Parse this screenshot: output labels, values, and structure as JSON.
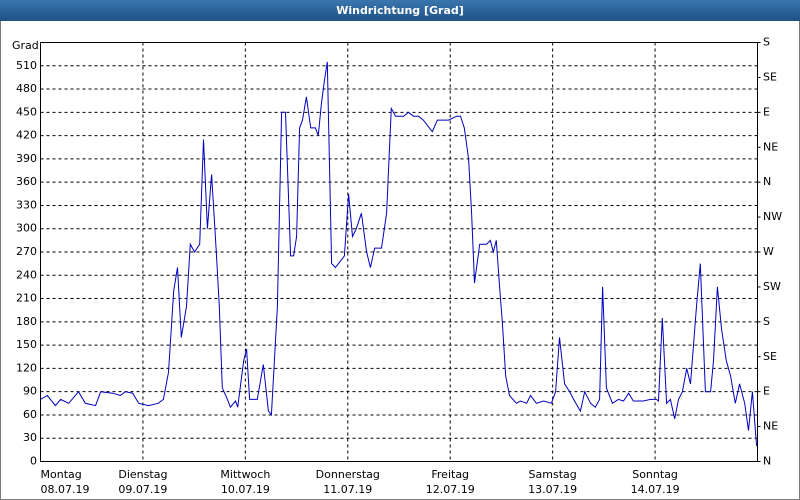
{
  "chart_data": {
    "type": "line",
    "title": "Windrichtung [Grad]",
    "y_label": "Grad",
    "color": "#0000c0",
    "xlim": [
      0,
      168
    ],
    "xticks": [
      {
        "value": 0,
        "label": "Montag",
        "date": "08.07.19"
      },
      {
        "value": 24,
        "label": "Dienstag",
        "date": "09.07.19"
      },
      {
        "value": 48,
        "label": "Mittwoch",
        "date": "10.07.19"
      },
      {
        "value": 72,
        "label": "Donnerstag",
        "date": "11.07.19"
      },
      {
        "value": 96,
        "label": "Freitag",
        "date": "12.07.19"
      },
      {
        "value": 120,
        "label": "Samstag",
        "date": "13.07.19"
      },
      {
        "value": 144,
        "label": "Sonntag",
        "date": "14.07.19"
      }
    ],
    "ylim": [
      0,
      540
    ],
    "yticks": [
      0,
      30,
      60,
      90,
      120,
      150,
      180,
      210,
      240,
      270,
      300,
      330,
      360,
      390,
      420,
      450,
      480,
      510
    ],
    "y2lim": [
      0,
      540
    ],
    "y2ticks": [
      {
        "value": 0,
        "label": "N"
      },
      {
        "value": 45,
        "label": "NE"
      },
      {
        "value": 90,
        "label": "E"
      },
      {
        "value": 135,
        "label": "SE"
      },
      {
        "value": 180,
        "label": "S"
      },
      {
        "value": 225,
        "label": "SW"
      },
      {
        "value": 270,
        "label": "W"
      },
      {
        "value": 315,
        "label": "NW"
      },
      {
        "value": 360,
        "label": "N"
      },
      {
        "value": 405,
        "label": "NE"
      },
      {
        "value": 450,
        "label": "E"
      },
      {
        "value": 495,
        "label": "SE"
      },
      {
        "value": 540,
        "label": "S"
      }
    ],
    "grid": true,
    "x": [
      0,
      1.6,
      3.5,
      4.7,
      6.6,
      8.9,
      10.5,
      12.9,
      14.1,
      16.9,
      18.7,
      19.9,
      21.6,
      23,
      25.3,
      27.6,
      28.8,
      30,
      31.2,
      32.1,
      33,
      34.2,
      35.1,
      36.1,
      37.3,
      38.2,
      39.1,
      40.1,
      41.2,
      41.9,
      42.6,
      43.8,
      44.5,
      45.7,
      46.2,
      47.6,
      48.3,
      49,
      50.8,
      52.2,
      53.4,
      54.1,
      55.5,
      56.5,
      57.4,
      58.6,
      59.3,
      60,
      60.7,
      61.4,
      62.3,
      63.3,
      64.4,
      65.1,
      65.8,
      66.5,
      67.2,
      68.2,
      69.1,
      70.5,
      71.2,
      72.2,
      73.1,
      74,
      75.2,
      76.4,
      77.3,
      78.3,
      79.9,
      81.1,
      82.2,
      83.2,
      85.1,
      86.2,
      87.4,
      88.6,
      89.7,
      91.8,
      93,
      95.6,
      97.5,
      98.4,
      99.3,
      100.3,
      101,
      101.7,
      102.9,
      104.5,
      105.4,
      106.1,
      106.8,
      107.5,
      108.2,
      109,
      109.9,
      111.5,
      112.5,
      113.9,
      114.8,
      116.2,
      117.9,
      119.7,
      120.7,
      121.6,
      122.8,
      124,
      124.9,
      126.5,
      127.5,
      128.9,
      130,
      131,
      131.7,
      132.6,
      134,
      135.4,
      136.6,
      137.8,
      138.9,
      141.3,
      142.9,
      144.3,
      144.8,
      145.7,
      146.7,
      147.6,
      148.6,
      149.5,
      150.4,
      151.4,
      152.3,
      153.7,
      154.6,
      155.8,
      157,
      157.7,
      158.6,
      159.6,
      160.7,
      161.7,
      162.8,
      163.8,
      165,
      165.9,
      166.8,
      167.8
    ],
    "values": [
      80,
      85,
      72,
      80,
      75,
      90,
      75,
      72,
      90,
      88,
      85,
      90,
      88,
      75,
      72,
      75,
      80,
      115,
      220,
      250,
      160,
      200,
      280,
      270,
      280,
      415,
      300,
      370,
      270,
      200,
      95,
      80,
      70,
      78,
      70,
      130,
      145,
      80,
      80,
      125,
      65,
      60,
      200,
      450,
      450,
      265,
      265,
      290,
      430,
      440,
      470,
      430,
      430,
      420,
      460,
      490,
      515,
      255,
      250,
      260,
      265,
      345,
      290,
      300,
      320,
      270,
      250,
      275,
      275,
      320,
      455,
      445,
      445,
      450,
      445,
      445,
      440,
      425,
      440,
      440,
      445,
      445,
      430,
      390,
      320,
      230,
      280,
      280,
      285,
      270,
      285,
      230,
      180,
      110,
      85,
      75,
      78,
      75,
      85,
      75,
      78,
      75,
      90,
      160,
      100,
      90,
      80,
      65,
      90,
      75,
      70,
      80,
      225,
      95,
      75,
      80,
      78,
      88,
      78,
      78,
      80,
      80,
      78,
      185,
      75,
      80,
      55,
      80,
      90,
      120,
      100,
      200,
      255,
      90,
      90,
      130,
      225,
      170,
      130,
      110,
      75,
      100,
      75,
      40,
      90,
      20
    ]
  }
}
